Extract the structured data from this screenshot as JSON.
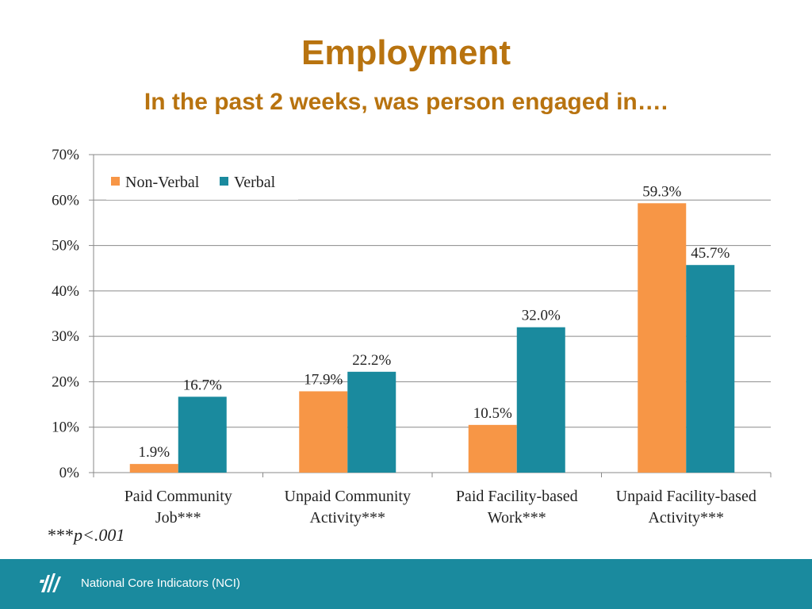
{
  "title": "Employment",
  "subtitle": "In the past 2 weeks, was person engaged in….",
  "note": {
    "stars": "***",
    "text": "p<.001"
  },
  "footer": {
    "org": "National Core Indicators (NCI)",
    "logo_icon": "nci-logo-icon"
  },
  "colors": {
    "non_verbal": "#f79646",
    "verbal": "#1a8a9e",
    "title": "#b8730f",
    "footer": "#1a8a9e"
  },
  "chart_data": {
    "type": "bar",
    "categories": [
      [
        "Paid Community",
        "Job***"
      ],
      [
        "Unpaid Community",
        "Activity***"
      ],
      [
        "Paid Facility-based",
        "Work***"
      ],
      [
        "Unpaid Facility-based",
        "Activity***"
      ]
    ],
    "series": [
      {
        "name": "Non-Verbal",
        "values": [
          1.9,
          17.9,
          10.5,
          59.3
        ],
        "labels": [
          "1.9%",
          "17.9%",
          "10.5%",
          "59.3%"
        ]
      },
      {
        "name": "Verbal",
        "values": [
          16.7,
          22.2,
          32.0,
          45.7
        ],
        "labels": [
          "16.7%",
          "22.2%",
          "32.0%",
          "45.7%"
        ]
      }
    ],
    "yticks": [
      "0%",
      "10%",
      "20%",
      "30%",
      "40%",
      "50%",
      "60%",
      "70%"
    ],
    "ylim": [
      0,
      70
    ],
    "grid": true,
    "legend": "top-left"
  }
}
